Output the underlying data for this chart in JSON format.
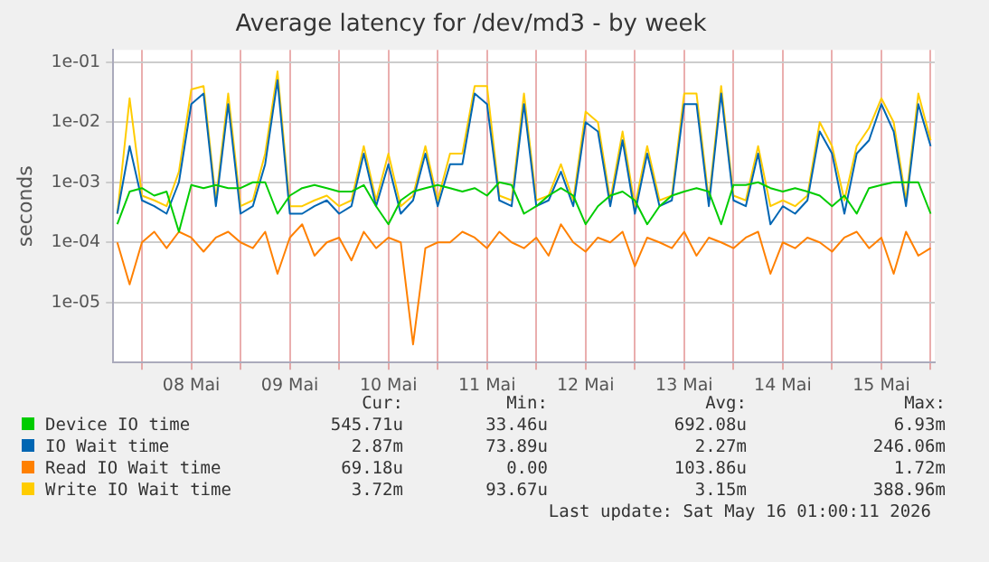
{
  "chart_data": {
    "type": "line",
    "title": "Average latency for /dev/md3 - by week",
    "ylabel": "seconds",
    "log": "y",
    "grid": true,
    "legend": "bottom",
    "marker": "none",
    "line_style": "solid",
    "ylim": [
      1e-06,
      0.16
    ],
    "yticks": [
      {
        "value": 1e-05,
        "label": "1e-05"
      },
      {
        "value": 0.0001,
        "label": "1e-04"
      },
      {
        "value": 0.001,
        "label": "1e-03"
      },
      {
        "value": 0.01,
        "label": "1e-02"
      },
      {
        "value": 0.1,
        "label": "1e-01"
      }
    ],
    "xlim": [
      "2026-05-07T17:00",
      "2026-05-16T01:00"
    ],
    "xticks": [
      {
        "value": "2026-05-08T00:00",
        "label": null
      },
      {
        "value": "2026-05-08T12:00",
        "label": "08 Mai"
      },
      {
        "value": "2026-05-09T00:00",
        "label": null
      },
      {
        "value": "2026-05-09T12:00",
        "label": "09 Mai"
      },
      {
        "value": "2026-05-10T00:00",
        "label": null
      },
      {
        "value": "2026-05-10T12:00",
        "label": "10 Mai"
      },
      {
        "value": "2026-05-11T00:00",
        "label": null
      },
      {
        "value": "2026-05-11T12:00",
        "label": "11 Mai"
      },
      {
        "value": "2026-05-12T00:00",
        "label": null
      },
      {
        "value": "2026-05-12T12:00",
        "label": "12 Mai"
      },
      {
        "value": "2026-05-13T00:00",
        "label": null
      },
      {
        "value": "2026-05-13T12:00",
        "label": "13 Mai"
      },
      {
        "value": "2026-05-14T00:00",
        "label": null
      },
      {
        "value": "2026-05-14T12:00",
        "label": "14 Mai"
      },
      {
        "value": "2026-05-15T00:00",
        "label": null
      },
      {
        "value": "2026-05-15T12:00",
        "label": "15 Mai"
      },
      {
        "value": "2026-05-16T00:00",
        "label": null
      }
    ],
    "x": [
      "2026-05-07T18:00",
      "2026-05-07T21:00",
      "2026-05-08T00:00",
      "2026-05-08T03:00",
      "2026-05-08T06:00",
      "2026-05-08T09:00",
      "2026-05-08T12:00",
      "2026-05-08T15:00",
      "2026-05-08T18:00",
      "2026-05-08T21:00",
      "2026-05-09T00:00",
      "2026-05-09T03:00",
      "2026-05-09T06:00",
      "2026-05-09T09:00",
      "2026-05-09T12:00",
      "2026-05-09T15:00",
      "2026-05-09T18:00",
      "2026-05-09T21:00",
      "2026-05-10T00:00",
      "2026-05-10T03:00",
      "2026-05-10T06:00",
      "2026-05-10T09:00",
      "2026-05-10T12:00",
      "2026-05-10T15:00",
      "2026-05-10T18:00",
      "2026-05-10T21:00",
      "2026-05-11T00:00",
      "2026-05-11T03:00",
      "2026-05-11T06:00",
      "2026-05-11T09:00",
      "2026-05-11T12:00",
      "2026-05-11T15:00",
      "2026-05-11T18:00",
      "2026-05-11T21:00",
      "2026-05-12T00:00",
      "2026-05-12T03:00",
      "2026-05-12T06:00",
      "2026-05-12T09:00",
      "2026-05-12T12:00",
      "2026-05-12T15:00",
      "2026-05-12T18:00",
      "2026-05-12T21:00",
      "2026-05-13T00:00",
      "2026-05-13T03:00",
      "2026-05-13T06:00",
      "2026-05-13T09:00",
      "2026-05-13T12:00",
      "2026-05-13T15:00",
      "2026-05-13T18:00",
      "2026-05-13T21:00",
      "2026-05-14T00:00",
      "2026-05-14T03:00",
      "2026-05-14T06:00",
      "2026-05-14T09:00",
      "2026-05-14T12:00",
      "2026-05-14T15:00",
      "2026-05-14T18:00",
      "2026-05-14T21:00",
      "2026-05-15T00:00",
      "2026-05-15T03:00",
      "2026-05-15T06:00",
      "2026-05-15T09:00",
      "2026-05-15T12:00",
      "2026-05-15T15:00",
      "2026-05-15T18:00",
      "2026-05-15T21:00",
      "2026-05-16T00:00"
    ],
    "series": [
      {
        "name": "Device IO time",
        "color": "#00cc00",
        "values": [
          0.0002,
          0.0007,
          0.0008,
          0.0006,
          0.0007,
          0.00015,
          0.0009,
          0.0008,
          0.0009,
          0.0008,
          0.0008,
          0.001,
          0.001,
          0.0003,
          0.0006,
          0.0008,
          0.0009,
          0.0008,
          0.0007,
          0.0007,
          0.0009,
          0.0004,
          0.0002,
          0.0005,
          0.0007,
          0.0008,
          0.0009,
          0.0008,
          0.0007,
          0.0008,
          0.0006,
          0.001,
          0.0009,
          0.0003,
          0.0004,
          0.0006,
          0.0008,
          0.0006,
          0.0002,
          0.0004,
          0.0006,
          0.0007,
          0.0005,
          0.0002,
          0.0004,
          0.0006,
          0.0007,
          0.0008,
          0.0007,
          0.0002,
          0.0009,
          0.0009,
          0.001,
          0.0008,
          0.0007,
          0.0008,
          0.0007,
          0.0006,
          0.0004,
          0.0006,
          0.0003,
          0.0008,
          0.0009,
          0.001,
          0.001,
          0.001,
          0.0003
        ]
      },
      {
        "name": "IO Wait time",
        "color": "#0066b3",
        "values": [
          0.0003,
          0.004,
          0.0005,
          0.0004,
          0.0003,
          0.001,
          0.02,
          0.03,
          0.0004,
          0.02,
          0.0003,
          0.0004,
          0.002,
          0.05,
          0.0003,
          0.0003,
          0.0004,
          0.0005,
          0.0003,
          0.0004,
          0.003,
          0.0004,
          0.002,
          0.0003,
          0.0005,
          0.003,
          0.0004,
          0.002,
          0.002,
          0.03,
          0.02,
          0.0005,
          0.0004,
          0.02,
          0.0004,
          0.0005,
          0.0015,
          0.0004,
          0.01,
          0.007,
          0.0004,
          0.005,
          0.0003,
          0.003,
          0.0004,
          0.0005,
          0.02,
          0.02,
          0.0004,
          0.03,
          0.0005,
          0.0004,
          0.003,
          0.0002,
          0.0004,
          0.0003,
          0.0005,
          0.007,
          0.003,
          0.0003,
          0.003,
          0.005,
          0.02,
          0.007,
          0.0004,
          0.02,
          0.004
        ]
      },
      {
        "name": "Read IO Wait time",
        "color": "#ff8000",
        "values": [
          0.0001,
          2e-05,
          0.0001,
          0.00015,
          8e-05,
          0.00015,
          0.00012,
          7e-05,
          0.00012,
          0.00015,
          0.0001,
          8e-05,
          0.00015,
          3e-05,
          0.00012,
          0.0002,
          6e-05,
          0.0001,
          0.00012,
          5e-05,
          0.00015,
          8e-05,
          0.00012,
          0.0001,
          2e-06,
          8e-05,
          0.0001,
          0.0001,
          0.00015,
          0.00012,
          8e-05,
          0.00015,
          0.0001,
          8e-05,
          0.00012,
          6e-05,
          0.0002,
          0.0001,
          7e-05,
          0.00012,
          0.0001,
          0.00015,
          4e-05,
          0.00012,
          0.0001,
          8e-05,
          0.00015,
          6e-05,
          0.00012,
          0.0001,
          8e-05,
          0.00012,
          0.00015,
          3e-05,
          0.0001,
          8e-05,
          0.00012,
          0.0001,
          7e-05,
          0.00012,
          0.00015,
          8e-05,
          0.00012,
          3e-05,
          0.00015,
          6e-05,
          8e-05
        ]
      },
      {
        "name": "Write IO Wait time",
        "color": "#ffcc00",
        "values": [
          0.0003,
          0.025,
          0.0006,
          0.0005,
          0.0004,
          0.0015,
          0.035,
          0.04,
          0.0005,
          0.03,
          0.0004,
          0.0005,
          0.003,
          0.07,
          0.0004,
          0.0004,
          0.0005,
          0.0006,
          0.0004,
          0.0005,
          0.004,
          0.0005,
          0.003,
          0.0004,
          0.0006,
          0.004,
          0.0005,
          0.003,
          0.003,
          0.04,
          0.04,
          0.0006,
          0.0005,
          0.03,
          0.0005,
          0.0006,
          0.002,
          0.0005,
          0.015,
          0.01,
          0.0005,
          0.007,
          0.0004,
          0.004,
          0.0005,
          0.0006,
          0.03,
          0.03,
          0.0005,
          0.04,
          0.0006,
          0.0005,
          0.004,
          0.0004,
          0.0005,
          0.0004,
          0.0006,
          0.01,
          0.004,
          0.0005,
          0.004,
          0.008,
          0.025,
          0.01,
          0.0005,
          0.03,
          0.005
        ]
      }
    ],
    "annotations": [
      "Cur:",
      "Min:",
      "Avg:",
      "Max:",
      "545.71u",
      "33.46u",
      "692.08u",
      "6.93m",
      "2.87m",
      "73.89u",
      "2.27m",
      "246.06m",
      "69.18u",
      "0.00",
      "103.86u",
      "1.72m",
      "3.72m",
      "93.67u",
      "3.15m",
      "388.96m",
      "Last update: Sat May 16 01:00:11 2026"
    ]
  }
}
